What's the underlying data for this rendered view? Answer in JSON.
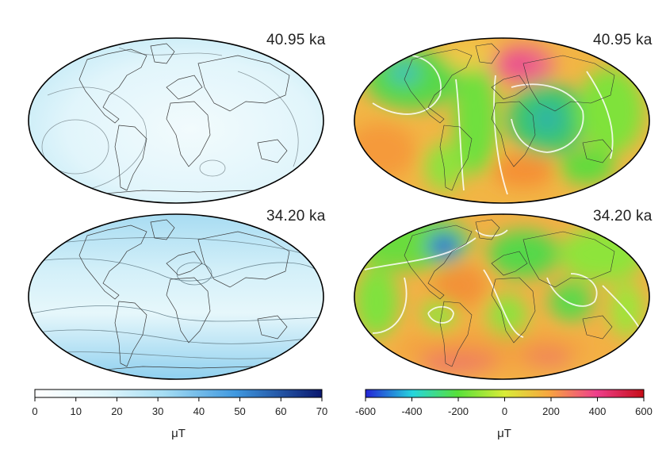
{
  "panels": {
    "top_left": {
      "epoch": "40.95 ka"
    },
    "top_right": {
      "epoch": "40.95 ka"
    },
    "bottom_left": {
      "epoch": "34.20 ka"
    },
    "bottom_right": {
      "epoch": "34.20 ka"
    }
  },
  "colorbar_left": {
    "ticks": [
      "0",
      "10",
      "20",
      "30",
      "40",
      "50",
      "60",
      "70"
    ],
    "range": [
      0,
      70
    ],
    "unit": "μT",
    "colors": [
      "#ffffff",
      "#e2f6fb",
      "#9fdcf2",
      "#4aa7e3",
      "#0b1d7a"
    ]
  },
  "colorbar_right": {
    "ticks": [
      "-600",
      "-400",
      "-200",
      "0",
      "200",
      "400",
      "600"
    ],
    "range": [
      -600,
      600
    ],
    "unit": "μT",
    "colors": [
      "#2a2adb",
      "#27d9d9",
      "#5fe03a",
      "#d7ec3a",
      "#f7a640",
      "#ee3f8e",
      "#c80f1a"
    ]
  }
}
